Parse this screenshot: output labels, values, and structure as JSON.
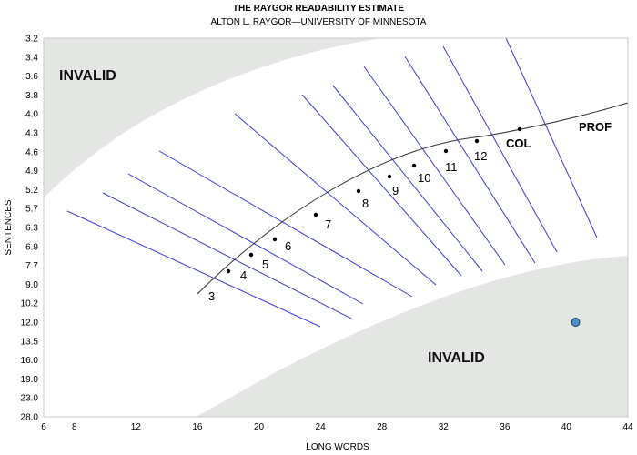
{
  "chart_data": {
    "type": "scatter",
    "title": "THE RAYGOR READABILITY ESTIMATE",
    "subtitle": "ALTON L. RAYGOR—UNIVERSITY OF MINNESOTA",
    "xlabel": "LONG WORDS",
    "ylabel": "SENTENCES",
    "xlim": [
      6,
      44
    ],
    "x_ticks": [
      6,
      8,
      12,
      16,
      20,
      24,
      28,
      32,
      36,
      40,
      44
    ],
    "y_ticks": [
      "3.2",
      "3.4",
      "3.6",
      "3.8",
      "4.0",
      "4.3",
      "4.6",
      "4.9",
      "5.2",
      "5.7",
      "6.3",
      "6.9",
      "7.7",
      "9.0",
      "10.2",
      "12.0",
      "13.5",
      "16.0",
      "19.0",
      "23.0",
      "28.0"
    ],
    "regions": [
      {
        "label": "INVALID",
        "placement": "top-left"
      },
      {
        "label": "INVALID",
        "placement": "bottom-right"
      }
    ],
    "grade_labels": [
      "3",
      "4",
      "5",
      "6",
      "7",
      "8",
      "9",
      "10",
      "11",
      "12",
      "COL",
      "PROF"
    ],
    "point": {
      "x": 40.6,
      "y": "12.0",
      "color": "#4a90c8"
    },
    "colors": {
      "grade_lines": "#3a3ae0",
      "invalid_region": "#e4e6e4",
      "curve": "#333333"
    }
  }
}
